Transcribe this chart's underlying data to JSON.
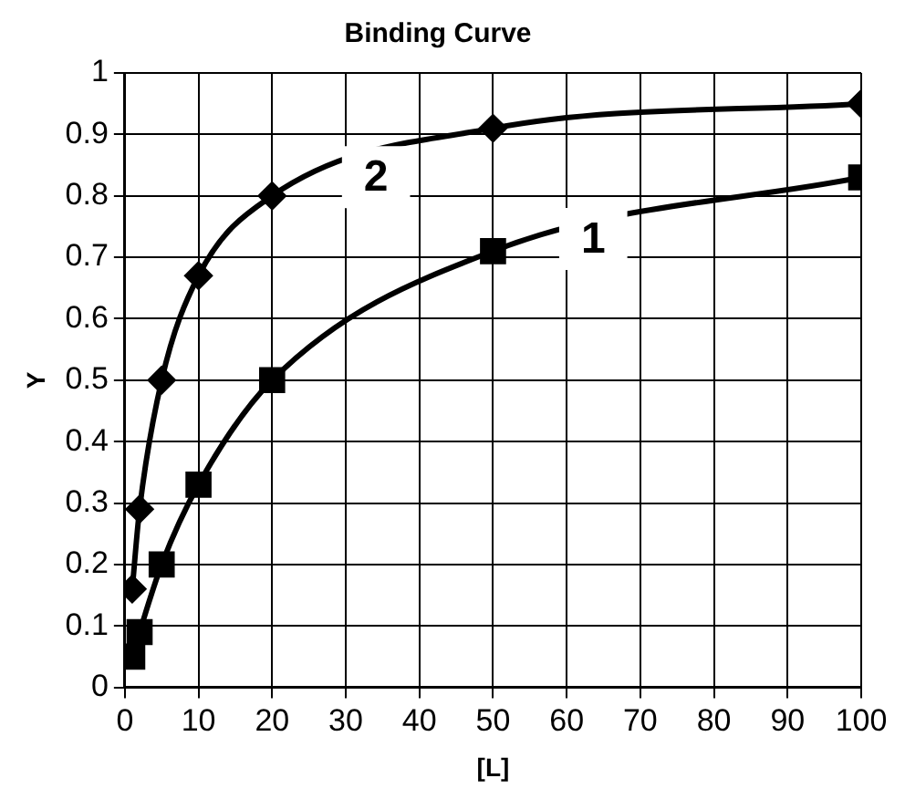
{
  "chart_data": {
    "type": "line",
    "title": "Binding Curve",
    "xlabel": "[L]",
    "ylabel": "Y",
    "xlim": [
      0,
      100
    ],
    "xticks": [
      0,
      10,
      20,
      30,
      40,
      50,
      60,
      70,
      80,
      90,
      100
    ],
    "ylim": [
      0,
      1
    ],
    "yticks": [
      0,
      0.1,
      0.2,
      0.3,
      0.4,
      0.5,
      0.6,
      0.7,
      0.8,
      0.9,
      1
    ],
    "grid": true,
    "legend": false,
    "line_style": "solid",
    "series": [
      {
        "name": "1",
        "color": "#000000",
        "marker": "square",
        "x": [
          1,
          2,
          5,
          10,
          20,
          50,
          100
        ],
        "values": [
          0.05,
          0.09,
          0.2,
          0.33,
          0.5,
          0.71,
          0.83
        ]
      },
      {
        "name": "2",
        "color": "#000000",
        "marker": "diamond",
        "x": [
          1,
          2,
          5,
          10,
          20,
          50,
          100
        ],
        "values": [
          0.16,
          0.29,
          0.5,
          0.67,
          0.8,
          0.91,
          0.95
        ]
      }
    ]
  }
}
